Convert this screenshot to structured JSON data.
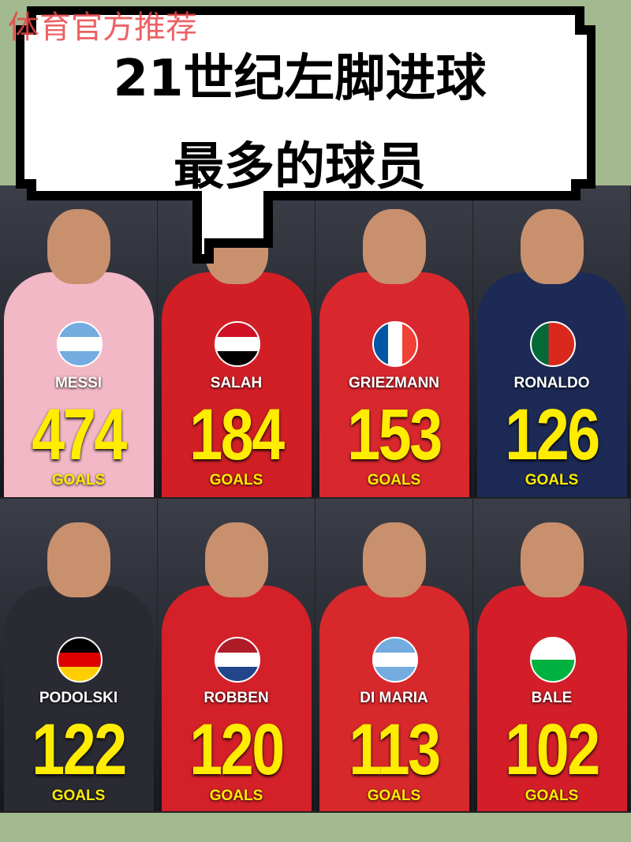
{
  "watermark": "体育官方推荐",
  "title": {
    "line1": "21世纪左脚进球",
    "line2": "最多的球员"
  },
  "colors": {
    "goals": "#ffec00",
    "background": "#a3b98f"
  },
  "goals_label": "GOALS",
  "players": [
    {
      "name": "MESSI",
      "goals": "474",
      "flag": "argentina",
      "kit": "#f2b8c6"
    },
    {
      "name": "SALAH",
      "goals": "184",
      "flag": "egypt",
      "kit": "#d21f26"
    },
    {
      "name": "GRIEZMANN",
      "goals": "153",
      "flag": "france",
      "kit": "#d8282e"
    },
    {
      "name": "RONALDO",
      "goals": "126",
      "flag": "portugal",
      "kit": "#1c2a55"
    },
    {
      "name": "PODOLSKI",
      "goals": "122",
      "flag": "germany",
      "kit": "#2a2a33"
    },
    {
      "name": "ROBBEN",
      "goals": "120",
      "flag": "netherlands",
      "kit": "#d42029"
    },
    {
      "name": "DI MARIA",
      "goals": "113",
      "flag": "argentina",
      "kit": "#d7282c"
    },
    {
      "name": "BALE",
      "goals": "102",
      "flag": "wales",
      "kit": "#d31e2a"
    }
  ]
}
